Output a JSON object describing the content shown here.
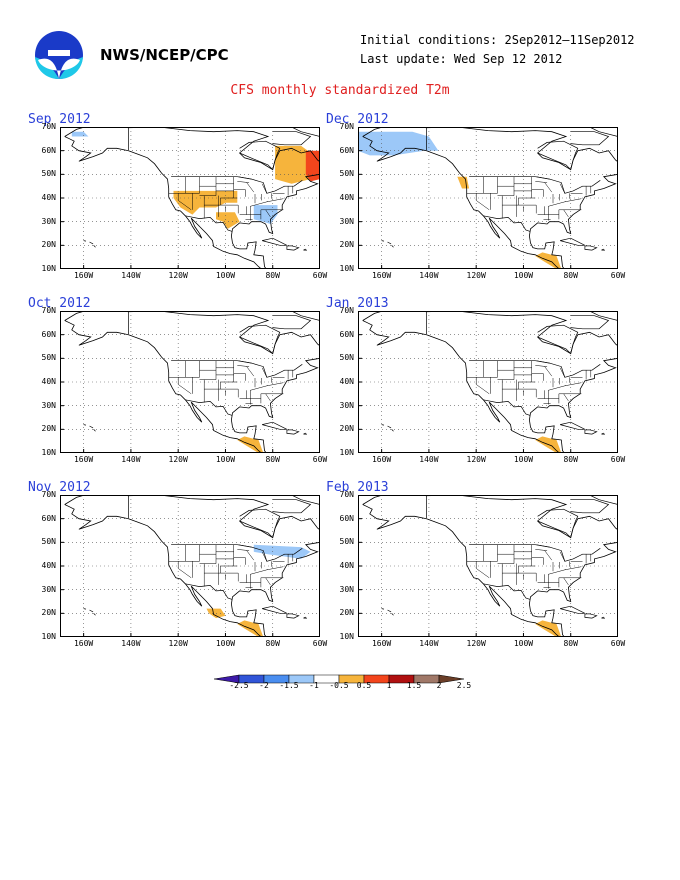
{
  "header": {
    "agency": "NWS/NCEP/CPC",
    "initial_conditions": "Initial conditions: 2Sep2012–11Sep2012",
    "last_update": "Last update: Wed Sep 12 2012",
    "title": "CFS monthly standardized T2m"
  },
  "axes": {
    "lat_labels": [
      "70N",
      "60N",
      "50N",
      "40N",
      "30N",
      "20N",
      "10N"
    ],
    "lon_labels": [
      "160W",
      "140W",
      "120W",
      "100W",
      "80W",
      "60W"
    ]
  },
  "panels": [
    {
      "title": "Sep 2012",
      "anomalies": [
        {
          "region": "Alaska north coast",
          "level": "-1"
        },
        {
          "region": "Western US / Great Basin",
          "level": "1"
        },
        {
          "region": "Texas",
          "level": "1"
        },
        {
          "region": "Southeast US",
          "level": "-1"
        },
        {
          "region": "Quebec / Labrador",
          "level": "1"
        },
        {
          "region": "Newfoundland / Labrador coast",
          "level": "1.5"
        }
      ]
    },
    {
      "title": "Dec 2012",
      "anomalies": [
        {
          "region": "Alaska / Bering",
          "level": "-1"
        },
        {
          "region": "Pacific Northwest coast",
          "level": "1"
        },
        {
          "region": "Central America",
          "level": "1"
        }
      ]
    },
    {
      "title": "Oct 2012",
      "anomalies": [
        {
          "region": "Central America",
          "level": "1"
        }
      ]
    },
    {
      "title": "Jan 2013",
      "anomalies": [
        {
          "region": "Central America",
          "level": "1"
        }
      ]
    },
    {
      "title": "Nov 2012",
      "anomalies": [
        {
          "region": "Great Lakes / Northeast",
          "level": "-1"
        },
        {
          "region": "Mexico",
          "level": "1"
        },
        {
          "region": "Central America",
          "level": "1"
        }
      ]
    },
    {
      "title": "Feb 2013",
      "anomalies": [
        {
          "region": "Central America",
          "level": "1"
        }
      ]
    }
  ],
  "legend": {
    "labels": [
      "-2.5",
      "-2",
      "-1.5",
      "-1",
      "-0.5",
      "0.5",
      "1",
      "1.5",
      "2",
      "2.5"
    ],
    "colors": [
      "#3d1aa8",
      "#3155d8",
      "#4a8ef0",
      "#9cc8f8",
      "#ffffff",
      "#f6b43c",
      "#f3451c",
      "#b01010",
      "#a07868",
      "#6b3e28"
    ]
  },
  "anomaly_colors": {
    "-1": "#9cc8f8",
    "1": "#f6b43c",
    "1.5": "#f3451c"
  }
}
